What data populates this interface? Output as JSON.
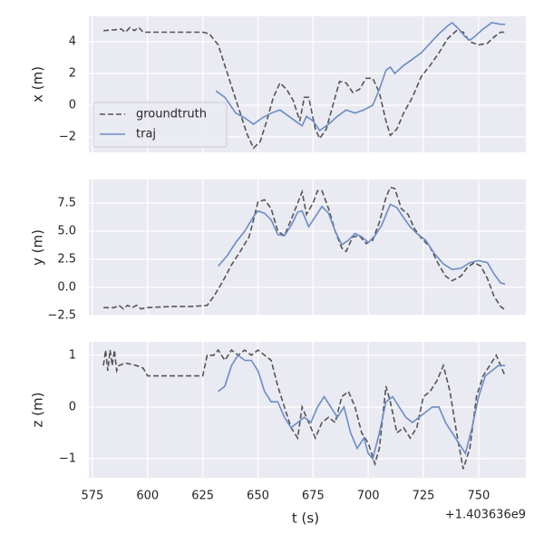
{
  "chart_data": [
    {
      "type": "line",
      "ylabel": "x (m)",
      "xlim": [
        573.4,
        771.4
      ],
      "xticks": [
        575,
        600,
        625,
        650,
        675,
        700,
        725,
        750
      ],
      "ylim": [
        -2.97,
        5.6
      ],
      "yticks": [
        4,
        2,
        0,
        {
          "value": -2,
          "label": "−2"
        }
      ],
      "grid": true,
      "legend": "lower left",
      "series": [
        {
          "name": "groundtruth",
          "color": "#555555",
          "linestyle": "dashed",
          "x": [
            580,
            585,
            588,
            590,
            592,
            594,
            596,
            598,
            600,
            610,
            620,
            625,
            628,
            632,
            635,
            638,
            642,
            645,
            648,
            651,
            654,
            657,
            660,
            663,
            666,
            669,
            671,
            673,
            676,
            678,
            681,
            684,
            687,
            690,
            693,
            696,
            699,
            702,
            705,
            708,
            710,
            713,
            716,
            720,
            724,
            728,
            732,
            736,
            740,
            743,
            746,
            750,
            754,
            757,
            760,
            762
          ],
          "values": [
            4.7,
            4.75,
            4.8,
            4.6,
            4.9,
            4.7,
            4.9,
            4.6,
            4.6,
            4.6,
            4.6,
            4.6,
            4.5,
            3.8,
            2.5,
            1.2,
            -0.5,
            -1.8,
            -2.7,
            -2.3,
            -1.0,
            0.5,
            1.4,
            1.0,
            0.3,
            -1.0,
            0.5,
            0.5,
            -1.5,
            -2.1,
            -1.5,
            0.0,
            1.5,
            1.4,
            0.8,
            1.0,
            1.7,
            1.7,
            0.8,
            -1.0,
            -1.9,
            -1.5,
            -0.5,
            0.5,
            1.8,
            2.5,
            3.3,
            4.2,
            4.7,
            4.6,
            4.0,
            3.8,
            3.9,
            4.3,
            4.6,
            4.6
          ]
        },
        {
          "name": "traj",
          "color": "#6b8cc7",
          "linestyle": "solid",
          "x": [
            631,
            635,
            640,
            644,
            648,
            652,
            656,
            660,
            664,
            668,
            670,
            672,
            675,
            678,
            682,
            686,
            690,
            694,
            698,
            702,
            705,
            708,
            710,
            712,
            716,
            720,
            724,
            728,
            732,
            736,
            738,
            741,
            744,
            746,
            748,
            752,
            756,
            760,
            762
          ],
          "values": [
            0.9,
            0.5,
            -0.5,
            -0.8,
            -1.2,
            -0.8,
            -0.5,
            -0.3,
            -0.7,
            -1.1,
            -1.3,
            -0.7,
            -1.0,
            -1.6,
            -1.2,
            -0.7,
            -0.3,
            -0.5,
            -0.3,
            0.0,
            1.0,
            2.2,
            2.4,
            2.0,
            2.5,
            2.9,
            3.3,
            3.9,
            4.5,
            5.0,
            5.2,
            4.8,
            4.3,
            4.1,
            4.3,
            4.8,
            5.2,
            5.1,
            5.1
          ]
        }
      ]
    },
    {
      "type": "line",
      "ylabel": "y (m)",
      "xlim": [
        573.4,
        771.4
      ],
      "xticks": [
        575,
        600,
        625,
        650,
        675,
        700,
        725,
        750
      ],
      "ylim": [
        -2.5,
        9.6
      ],
      "yticks": [
        {
          "value": 7.5,
          "label": "7.5"
        },
        {
          "value": 5,
          "label": "5.0"
        },
        {
          "value": 2.5,
          "label": "2.5"
        },
        {
          "value": 0,
          "label": "0.0"
        },
        {
          "value": -2.5,
          "label": "−2.5"
        }
      ],
      "grid": true,
      "series": [
        {
          "name": "groundtruth",
          "color": "#555555",
          "linestyle": "dashed",
          "x": [
            580,
            585,
            587,
            589,
            591,
            593,
            595,
            597,
            600,
            610,
            620,
            627,
            630,
            634,
            638,
            642,
            646,
            648,
            650,
            653,
            656,
            659,
            662,
            665,
            668,
            670,
            672,
            675,
            677,
            679,
            682,
            685,
            688,
            690,
            693,
            696,
            699,
            702,
            705,
            708,
            710,
            712,
            715,
            718,
            721,
            724,
            728,
            732,
            735,
            738,
            742,
            745,
            748,
            751,
            754,
            757,
            760,
            762
          ],
          "values": [
            -1.8,
            -1.8,
            -1.6,
            -1.9,
            -1.6,
            -1.8,
            -1.6,
            -1.9,
            -1.8,
            -1.7,
            -1.7,
            -1.6,
            -0.8,
            0.5,
            2.0,
            3.2,
            4.5,
            6.0,
            7.6,
            7.8,
            7.0,
            5.0,
            4.6,
            6.0,
            7.5,
            8.5,
            6.5,
            7.5,
            8.6,
            8.6,
            7.0,
            5.0,
            3.5,
            3.2,
            4.5,
            4.6,
            3.9,
            4.2,
            5.8,
            8.0,
            8.9,
            8.8,
            7.0,
            6.5,
            5.2,
            4.4,
            3.6,
            2.0,
            1.0,
            0.6,
            1.0,
            1.8,
            2.2,
            1.9,
            0.8,
            -0.8,
            -1.7,
            -2.0
          ]
        },
        {
          "name": "traj",
          "color": "#6b8cc7",
          "linestyle": "solid",
          "x": [
            632,
            636,
            640,
            644,
            648,
            650,
            653,
            656,
            659,
            662,
            665,
            668,
            670,
            673,
            676,
            679,
            682,
            685,
            688,
            691,
            694,
            697,
            700,
            703,
            706,
            710,
            713,
            716,
            719,
            722,
            726,
            730,
            734,
            738,
            742,
            746,
            750,
            754,
            757,
            760,
            762
          ],
          "values": [
            1.9,
            2.8,
            4.0,
            5.0,
            6.3,
            6.8,
            6.6,
            6.0,
            4.7,
            4.6,
            5.5,
            6.7,
            6.8,
            5.4,
            6.3,
            7.2,
            6.6,
            5.0,
            3.8,
            4.2,
            4.8,
            4.5,
            4.0,
            4.6,
            5.5,
            7.4,
            7.1,
            6.2,
            5.4,
            4.8,
            4.2,
            3.0,
            2.1,
            1.6,
            1.7,
            2.2,
            2.4,
            2.2,
            1.2,
            0.4,
            0.3
          ]
        }
      ]
    },
    {
      "type": "line",
      "ylabel": "z (m)",
      "xlabel": "t (s)",
      "offset_text": "+1.403636e9",
      "xlim": [
        573.4,
        771.4
      ],
      "xticks": [
        575,
        600,
        625,
        650,
        675,
        700,
        725,
        750
      ],
      "ylim": [
        -1.37,
        1.26
      ],
      "yticks": [
        1,
        0,
        {
          "value": -1,
          "label": "−1"
        }
      ],
      "grid": true,
      "series": [
        {
          "name": "groundtruth",
          "color": "#555555",
          "linestyle": "dashed",
          "x": [
            580,
            581,
            582,
            583,
            584,
            585,
            586,
            587,
            590,
            595,
            598,
            600,
            610,
            620,
            625,
            627,
            630,
            632,
            635,
            638,
            641,
            644,
            647,
            650,
            653,
            656,
            659,
            662,
            665,
            668,
            670,
            673,
            676,
            679,
            682,
            685,
            688,
            691,
            694,
            697,
            700,
            703,
            705,
            708,
            710,
            713,
            716,
            719,
            722,
            725,
            728,
            731,
            734,
            737,
            740,
            743,
            746,
            749,
            752,
            755,
            758,
            760,
            762
          ],
          "values": [
            0.8,
            1.1,
            0.7,
            1.1,
            0.8,
            1.1,
            0.7,
            0.8,
            0.85,
            0.8,
            0.75,
            0.6,
            0.6,
            0.6,
            0.6,
            1.0,
            1.0,
            1.1,
            0.9,
            1.1,
            1.0,
            1.1,
            1.0,
            1.1,
            1.0,
            0.9,
            0.4,
            0.0,
            -0.4,
            -0.6,
            0.0,
            -0.3,
            -0.6,
            -0.3,
            -0.2,
            -0.3,
            0.2,
            0.3,
            0.0,
            -0.5,
            -0.7,
            -1.1,
            -0.8,
            0.4,
            0.1,
            -0.5,
            -0.4,
            -0.6,
            -0.4,
            0.2,
            0.3,
            0.5,
            0.8,
            0.3,
            -0.5,
            -1.2,
            -0.8,
            0.2,
            0.6,
            0.8,
            1.0,
            0.8,
            0.6
          ]
        },
        {
          "name": "traj",
          "color": "#6b8cc7",
          "linestyle": "solid",
          "x": [
            632,
            635,
            638,
            641,
            644,
            647,
            650,
            653,
            656,
            659,
            662,
            665,
            668,
            671,
            674,
            677,
            680,
            683,
            686,
            689,
            692,
            695,
            698,
            700,
            702,
            705,
            708,
            711,
            714,
            717,
            720,
            723,
            726,
            729,
            732,
            735,
            738,
            741,
            744,
            747,
            750,
            753,
            756,
            759,
            762
          ],
          "values": [
            0.3,
            0.4,
            0.8,
            1.0,
            0.9,
            0.9,
            0.7,
            0.3,
            0.1,
            0.1,
            -0.2,
            -0.4,
            -0.3,
            -0.2,
            -0.3,
            0.0,
            0.2,
            0.0,
            -0.2,
            0.0,
            -0.5,
            -0.8,
            -0.6,
            -0.9,
            -1.0,
            -0.5,
            0.1,
            0.2,
            0.0,
            -0.2,
            -0.3,
            -0.2,
            -0.1,
            0.0,
            0.0,
            -0.3,
            -0.5,
            -0.7,
            -0.9,
            -0.4,
            0.2,
            0.6,
            0.7,
            0.8,
            0.8
          ]
        }
      ]
    }
  ]
}
